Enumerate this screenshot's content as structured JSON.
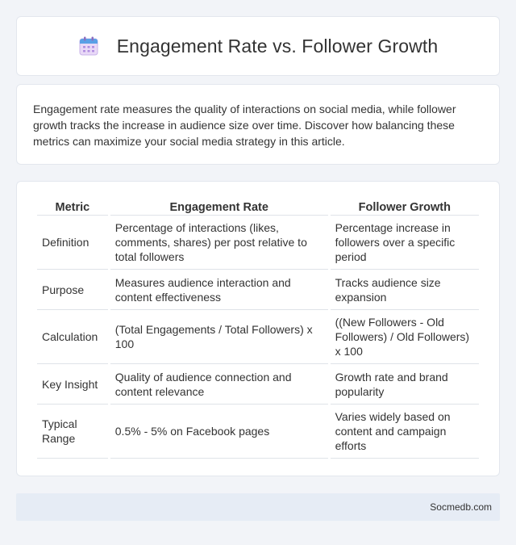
{
  "header": {
    "title": "Engagement Rate vs. Follower Growth",
    "icon": "calendar-icon"
  },
  "intro": {
    "text": "Engagement rate measures the quality of interactions on social media, while follower growth tracks the increase in audience size over time. Discover how balancing these metrics can maximize your social media strategy in this article."
  },
  "table": {
    "headers": [
      "Metric",
      "Engagement Rate",
      "Follower Growth"
    ],
    "rows": [
      {
        "metric": "Definition",
        "engagement": "Percentage of interactions (likes, comments, shares) per post relative to total followers",
        "growth": "Percentage increase in followers over a specific period"
      },
      {
        "metric": "Purpose",
        "engagement": "Measures audience interaction and content effectiveness",
        "growth": "Tracks audience size expansion"
      },
      {
        "metric": "Calculation",
        "engagement": "(Total Engagements / Total Followers) x 100",
        "growth": "((New Followers - Old Followers) / Old Followers) x 100"
      },
      {
        "metric": "Key Insight",
        "engagement": "Quality of audience connection and content relevance",
        "growth": "Growth rate and brand popularity"
      },
      {
        "metric": "Typical Range",
        "engagement": "0.5% - 5% on Facebook pages",
        "growth": "Varies widely based on content and campaign efforts"
      }
    ]
  },
  "footer": {
    "site": "Socmedb.com"
  }
}
